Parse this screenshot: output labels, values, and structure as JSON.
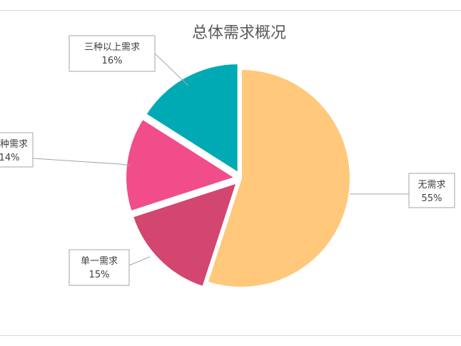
{
  "chart_data": {
    "type": "pie",
    "title": "总体需求概况",
    "categories": [
      "无需求",
      "单一需求",
      "两种需求",
      "三种以上需求"
    ],
    "values": [
      55,
      15,
      14,
      16
    ],
    "value_labels": [
      "55%",
      "15%",
      "14%",
      "16%"
    ],
    "slice_colors": [
      "#FFC87A",
      "#D2466F",
      "#F04D8A",
      "#00AAB4"
    ],
    "exploded": true,
    "legend": "none",
    "data_labels": "callouts with leader lines"
  }
}
